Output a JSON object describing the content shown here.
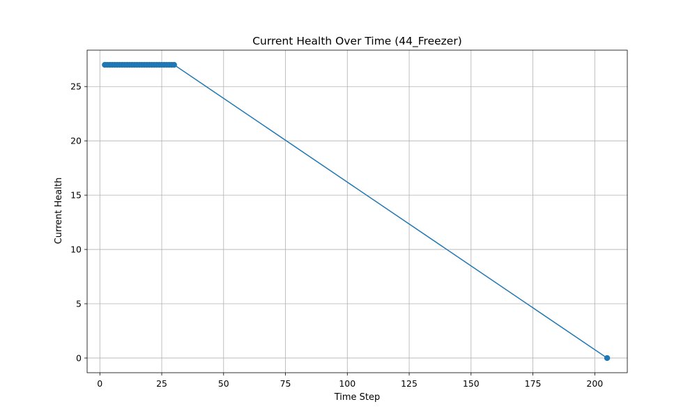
{
  "chart_data": {
    "type": "line",
    "title": "Current Health Over Time (44_Freezer)",
    "xlabel": "Time Step",
    "ylabel": "Current Health",
    "xlim": [
      -5.15,
      213.15
    ],
    "ylim": [
      -1.35,
      28.35
    ],
    "xticks": [
      0,
      25,
      50,
      75,
      100,
      125,
      150,
      175,
      200
    ],
    "yticks": [
      0,
      5,
      10,
      15,
      20,
      25
    ],
    "grid": true,
    "series": [
      {
        "color": "#1f77b4",
        "marker": "circle",
        "x": [
          2,
          3,
          4,
          5,
          6,
          7,
          8,
          9,
          10,
          11,
          12,
          13,
          14,
          15,
          16,
          17,
          18,
          19,
          20,
          21,
          22,
          23,
          24,
          25,
          26,
          27,
          28,
          29,
          30,
          205
        ],
        "y": [
          27,
          27,
          27,
          27,
          27,
          27,
          27,
          27,
          27,
          27,
          27,
          27,
          27,
          27,
          27,
          27,
          27,
          27,
          27,
          27,
          27,
          27,
          27,
          27,
          27,
          27,
          27,
          27,
          27,
          0
        ]
      }
    ]
  }
}
